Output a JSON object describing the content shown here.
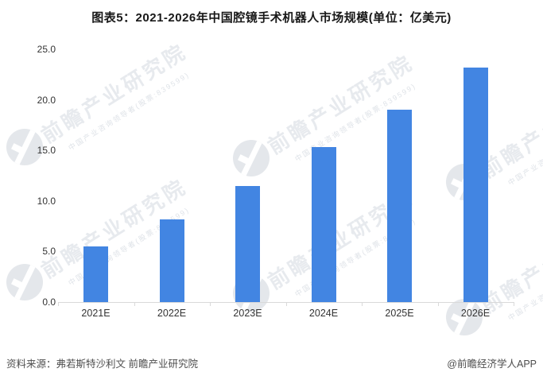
{
  "title": "图表5：2021-2026年中国腔镜手术机器人市场规模(单位：亿美元)",
  "chart_data": {
    "type": "bar",
    "title": "图表5：2021-2026年中国腔镜手术机器人市场规模(单位：亿美元)",
    "unit": "亿美元",
    "categories": [
      "2021E",
      "2022E",
      "2023E",
      "2024E",
      "2025E",
      "2026E"
    ],
    "values": [
      5.5,
      8.2,
      11.5,
      15.3,
      19.0,
      23.2
    ],
    "xlabel": "",
    "ylabel": "",
    "ylim": [
      0,
      25
    ],
    "ytick_labels": [
      "0.0",
      "5.0",
      "10.0",
      "15.0",
      "20.0",
      "25.0"
    ],
    "grid": false,
    "legend": false,
    "bar_color": "#4285E2",
    "axis_color": "#d9d9d9"
  },
  "watermark": {
    "big": "前瞻产业研究院",
    "small": "中国产业咨询领导者(股票:839599)"
  },
  "footer": {
    "source": "资料来源：弗若斯特沙利文 前瞻产业研究院",
    "brand": "@前瞻经济学人APP"
  }
}
